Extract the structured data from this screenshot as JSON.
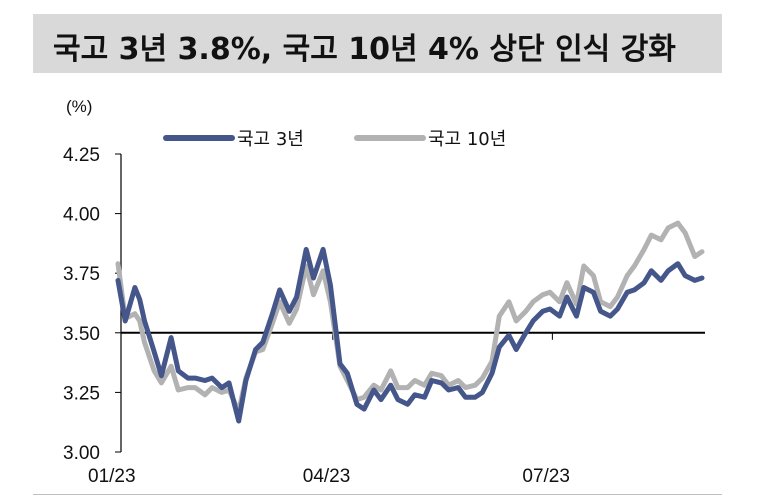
{
  "title": "국고 3년 3.8%, 국고 10년 4% 상단 인식 강화",
  "chart_data": {
    "type": "line",
    "ylabel": "(%)",
    "xlabel": "",
    "ylim": [
      3.0,
      4.25
    ],
    "yticks": [
      "3.00",
      "3.25",
      "3.50",
      "3.75",
      "4.00",
      "4.25"
    ],
    "xticks": [
      "01/23",
      "04/23",
      "07/23"
    ],
    "legend_position": "top",
    "grid": false,
    "series": [
      {
        "name": "국고 3년",
        "color": "#45568a",
        "points": [
          [
            "01/02",
            3.72
          ],
          [
            "01/05",
            3.55
          ],
          [
            "01/09",
            3.69
          ],
          [
            "01/11",
            3.64
          ],
          [
            "01/13",
            3.55
          ],
          [
            "01/17",
            3.42
          ],
          [
            "01/20",
            3.32
          ],
          [
            "01/24",
            3.48
          ],
          [
            "01/27",
            3.34
          ],
          [
            "01/31",
            3.31
          ],
          [
            "02/03",
            3.31
          ],
          [
            "02/07",
            3.3
          ],
          [
            "02/10",
            3.31
          ],
          [
            "02/14",
            3.27
          ],
          [
            "02/17",
            3.29
          ],
          [
            "02/21",
            3.13
          ],
          [
            "02/24",
            3.3
          ],
          [
            "02/28",
            3.43
          ],
          [
            "03/03",
            3.46
          ],
          [
            "03/07",
            3.58
          ],
          [
            "03/10",
            3.68
          ],
          [
            "03/14",
            3.59
          ],
          [
            "03/17",
            3.65
          ],
          [
            "03/21",
            3.85
          ],
          [
            "03/24",
            3.73
          ],
          [
            "03/28",
            3.85
          ],
          [
            "03/31",
            3.7
          ],
          [
            "04/04",
            3.37
          ],
          [
            "04/07",
            3.33
          ],
          [
            "04/11",
            3.2
          ],
          [
            "04/14",
            3.18
          ],
          [
            "04/18",
            3.26
          ],
          [
            "04/21",
            3.22
          ],
          [
            "04/25",
            3.28
          ],
          [
            "04/28",
            3.22
          ],
          [
            "05/02",
            3.2
          ],
          [
            "05/05",
            3.24
          ],
          [
            "05/09",
            3.23
          ],
          [
            "05/12",
            3.3
          ],
          [
            "05/16",
            3.29
          ],
          [
            "05/19",
            3.26
          ],
          [
            "05/23",
            3.27
          ],
          [
            "05/26",
            3.23
          ],
          [
            "05/30",
            3.23
          ],
          [
            "06/02",
            3.25
          ],
          [
            "06/06",
            3.33
          ],
          [
            "06/09",
            3.44
          ],
          [
            "06/13",
            3.49
          ],
          [
            "06/16",
            3.43
          ],
          [
            "06/20",
            3.5
          ],
          [
            "06/23",
            3.55
          ],
          [
            "06/27",
            3.59
          ],
          [
            "06/30",
            3.6
          ],
          [
            "07/04",
            3.57
          ],
          [
            "07/07",
            3.65
          ],
          [
            "07/11",
            3.57
          ],
          [
            "07/14",
            3.69
          ],
          [
            "07/18",
            3.67
          ],
          [
            "07/21",
            3.59
          ],
          [
            "07/25",
            3.57
          ],
          [
            "07/28",
            3.6
          ],
          [
            "08/01",
            3.67
          ],
          [
            "08/04",
            3.68
          ],
          [
            "08/08",
            3.71
          ],
          [
            "08/11",
            3.76
          ],
          [
            "08/15",
            3.72
          ],
          [
            "08/18",
            3.76
          ],
          [
            "08/22",
            3.79
          ],
          [
            "08/25",
            3.74
          ],
          [
            "08/29",
            3.72
          ],
          [
            "09/01",
            3.73
          ]
        ]
      },
      {
        "name": "국고 10년",
        "color": "#b2b2b2",
        "points": [
          [
            "01/02",
            3.79
          ],
          [
            "01/05",
            3.56
          ],
          [
            "01/09",
            3.58
          ],
          [
            "01/11",
            3.55
          ],
          [
            "01/13",
            3.46
          ],
          [
            "01/17",
            3.34
          ],
          [
            "01/20",
            3.29
          ],
          [
            "01/24",
            3.36
          ],
          [
            "01/27",
            3.26
          ],
          [
            "01/31",
            3.27
          ],
          [
            "02/03",
            3.27
          ],
          [
            "02/07",
            3.24
          ],
          [
            "02/10",
            3.27
          ],
          [
            "02/14",
            3.25
          ],
          [
            "02/17",
            3.26
          ],
          [
            "02/21",
            3.17
          ],
          [
            "02/24",
            3.31
          ],
          [
            "02/28",
            3.42
          ],
          [
            "03/03",
            3.43
          ],
          [
            "03/07",
            3.54
          ],
          [
            "03/10",
            3.63
          ],
          [
            "03/14",
            3.54
          ],
          [
            "03/17",
            3.6
          ],
          [
            "03/21",
            3.78
          ],
          [
            "03/24",
            3.66
          ],
          [
            "03/28",
            3.76
          ],
          [
            "03/31",
            3.63
          ],
          [
            "04/04",
            3.36
          ],
          [
            "04/07",
            3.3
          ],
          [
            "04/11",
            3.22
          ],
          [
            "04/14",
            3.23
          ],
          [
            "04/18",
            3.28
          ],
          [
            "04/21",
            3.26
          ],
          [
            "04/25",
            3.34
          ],
          [
            "04/28",
            3.27
          ],
          [
            "05/02",
            3.27
          ],
          [
            "05/05",
            3.3
          ],
          [
            "05/09",
            3.28
          ],
          [
            "05/12",
            3.33
          ],
          [
            "05/16",
            3.32
          ],
          [
            "05/19",
            3.28
          ],
          [
            "05/23",
            3.3
          ],
          [
            "05/26",
            3.27
          ],
          [
            "05/30",
            3.28
          ],
          [
            "06/02",
            3.31
          ],
          [
            "06/06",
            3.38
          ],
          [
            "06/09",
            3.57
          ],
          [
            "06/13",
            3.63
          ],
          [
            "06/16",
            3.55
          ],
          [
            "06/20",
            3.59
          ],
          [
            "06/23",
            3.63
          ],
          [
            "06/27",
            3.66
          ],
          [
            "06/30",
            3.67
          ],
          [
            "07/04",
            3.63
          ],
          [
            "07/07",
            3.71
          ],
          [
            "07/11",
            3.62
          ],
          [
            "07/14",
            3.78
          ],
          [
            "07/18",
            3.74
          ],
          [
            "07/21",
            3.63
          ],
          [
            "07/25",
            3.61
          ],
          [
            "07/28",
            3.65
          ],
          [
            "08/01",
            3.74
          ],
          [
            "08/04",
            3.78
          ],
          [
            "08/08",
            3.85
          ],
          [
            "08/11",
            3.91
          ],
          [
            "08/15",
            3.89
          ],
          [
            "08/18",
            3.94
          ],
          [
            "08/22",
            3.96
          ],
          [
            "08/25",
            3.92
          ],
          [
            "08/29",
            3.82
          ],
          [
            "09/01",
            3.84
          ]
        ]
      }
    ]
  }
}
